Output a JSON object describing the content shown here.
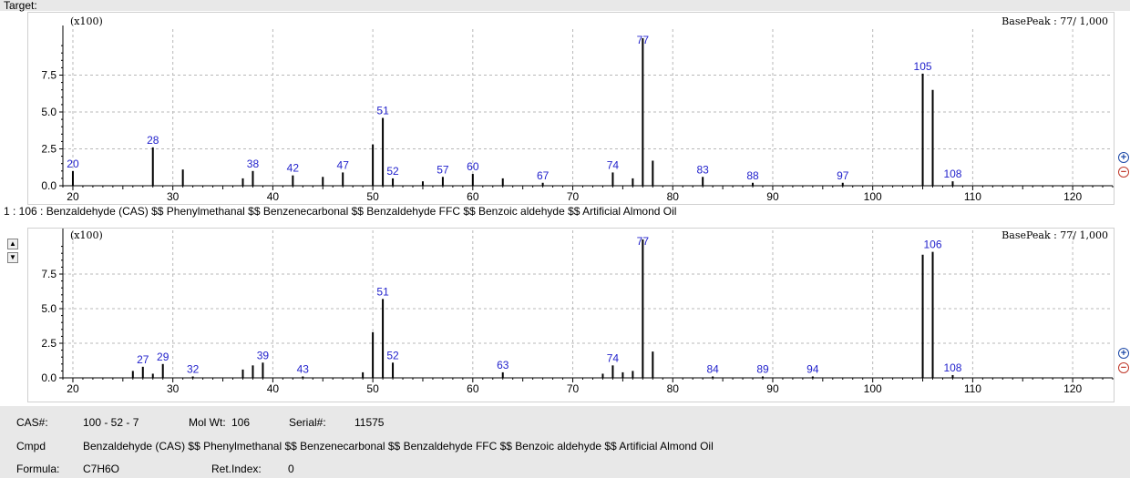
{
  "target_label": "Target:",
  "hit_line": "1 : 106 : Benzaldehyde (CAS) $$ Phenylmethanal $$ Benzenecarbonal $$ Benzaldehyde FFC $$ Benzoic aldehyde $$ Artificial Almond Oil",
  "icons": {
    "scroll_up": "triangle-up-icon",
    "scroll_down": "triangle-down-icon",
    "zoom_in": "zoom-in-icon",
    "zoom_out": "zoom-out-icon"
  },
  "colors": {
    "peak_label": "#2222cc",
    "grid": "#b8b8b8",
    "axis": "#000000",
    "bar": "#000000"
  },
  "info": {
    "cas_label": "CAS#:",
    "cas_value": "100 - 52 - 7",
    "molwt_label": "Mol Wt:",
    "molwt_value": "106",
    "serial_label": "Serial#:",
    "serial_value": "11575",
    "cmpd_label": "Cmpd",
    "cmpd_value": "Benzaldehyde (CAS) $$ Phenylmethanal $$ Benzenecarbonal $$ Benzaldehyde FFC $$ Benzoic aldehyde $$ Artificial Almond Oil",
    "formula_label": "Formula:",
    "formula_value": "C7H6O",
    "retindex_label": "Ret.Index:",
    "retindex_value": "0"
  },
  "chart_data": [
    {
      "type": "bar",
      "name": "target",
      "multiplier_label": "(x100)",
      "basepeak_label": "BasePeak : 77/ 1,000",
      "xlim": [
        19,
        124
      ],
      "ylim": [
        0,
        10
      ],
      "xticks": [
        20,
        30,
        40,
        50,
        60,
        70,
        80,
        90,
        100,
        110,
        120
      ],
      "yticks": [
        0.0,
        2.5,
        5.0,
        7.5
      ],
      "ytick_labels": [
        "0.0",
        "2.5",
        "5.0",
        "7.5"
      ],
      "grid": true,
      "peaks": [
        {
          "mz": 20,
          "value": 1.0,
          "label": "20"
        },
        {
          "mz": 28,
          "value": 2.6,
          "label": "28"
        },
        {
          "mz": 31,
          "value": 1.1
        },
        {
          "mz": 37,
          "value": 0.5
        },
        {
          "mz": 38,
          "value": 1.0,
          "label": "38"
        },
        {
          "mz": 42,
          "value": 0.7,
          "label": "42"
        },
        {
          "mz": 45,
          "value": 0.6
        },
        {
          "mz": 47,
          "value": 0.9,
          "label": "47"
        },
        {
          "mz": 50,
          "value": 2.8
        },
        {
          "mz": 51,
          "value": 4.6,
          "label": "51"
        },
        {
          "mz": 52,
          "value": 0.5,
          "label": "52"
        },
        {
          "mz": 55,
          "value": 0.3
        },
        {
          "mz": 57,
          "value": 0.6,
          "label": "57"
        },
        {
          "mz": 60,
          "value": 0.8,
          "label": "60"
        },
        {
          "mz": 63,
          "value": 0.5
        },
        {
          "mz": 67,
          "value": 0.2,
          "label": "67"
        },
        {
          "mz": 74,
          "value": 0.9,
          "label": "74"
        },
        {
          "mz": 76,
          "value": 0.5
        },
        {
          "mz": 77,
          "value": 10.0,
          "label": "77"
        },
        {
          "mz": 78,
          "value": 1.7
        },
        {
          "mz": 83,
          "value": 0.6,
          "label": "83"
        },
        {
          "mz": 88,
          "value": 0.2,
          "label": "88"
        },
        {
          "mz": 97,
          "value": 0.2,
          "label": "97"
        },
        {
          "mz": 105,
          "value": 7.6,
          "label": "105"
        },
        {
          "mz": 106,
          "value": 6.5
        },
        {
          "mz": 108,
          "value": 0.3,
          "label": "108"
        }
      ]
    },
    {
      "type": "bar",
      "name": "library-hit",
      "multiplier_label": "(x100)",
      "basepeak_label": "BasePeak : 77/ 1,000",
      "xlim": [
        19,
        124
      ],
      "ylim": [
        0,
        10
      ],
      "xticks": [
        20,
        30,
        40,
        50,
        60,
        70,
        80,
        90,
        100,
        110,
        120
      ],
      "yticks": [
        0.0,
        2.5,
        5.0,
        7.5
      ],
      "ytick_labels": [
        "0.0",
        "2.5",
        "5.0",
        "7.5"
      ],
      "grid": true,
      "peaks": [
        {
          "mz": 26,
          "value": 0.5
        },
        {
          "mz": 27,
          "value": 0.8,
          "label": "27"
        },
        {
          "mz": 28,
          "value": 0.3
        },
        {
          "mz": 29,
          "value": 1.0,
          "label": "29"
        },
        {
          "mz": 32,
          "value": 0.1,
          "label": "32"
        },
        {
          "mz": 37,
          "value": 0.6
        },
        {
          "mz": 38,
          "value": 0.9
        },
        {
          "mz": 39,
          "value": 1.1,
          "label": "39"
        },
        {
          "mz": 43,
          "value": 0.1,
          "label": "43"
        },
        {
          "mz": 49,
          "value": 0.4
        },
        {
          "mz": 50,
          "value": 3.3
        },
        {
          "mz": 51,
          "value": 5.7,
          "label": "51"
        },
        {
          "mz": 52,
          "value": 1.1,
          "label": "52"
        },
        {
          "mz": 63,
          "value": 0.4,
          "label": "63"
        },
        {
          "mz": 73,
          "value": 0.3
        },
        {
          "mz": 74,
          "value": 0.9,
          "label": "74"
        },
        {
          "mz": 75,
          "value": 0.4
        },
        {
          "mz": 76,
          "value": 0.5
        },
        {
          "mz": 77,
          "value": 10.0,
          "label": "77"
        },
        {
          "mz": 78,
          "value": 1.9
        },
        {
          "mz": 84,
          "value": 0.1,
          "label": "84"
        },
        {
          "mz": 89,
          "value": 0.1,
          "label": "89"
        },
        {
          "mz": 94,
          "value": 0.1,
          "label": "94"
        },
        {
          "mz": 105,
          "value": 8.9
        },
        {
          "mz": 106,
          "value": 9.1,
          "label": "106"
        },
        {
          "mz": 108,
          "value": 0.2,
          "label": "108"
        }
      ]
    }
  ]
}
